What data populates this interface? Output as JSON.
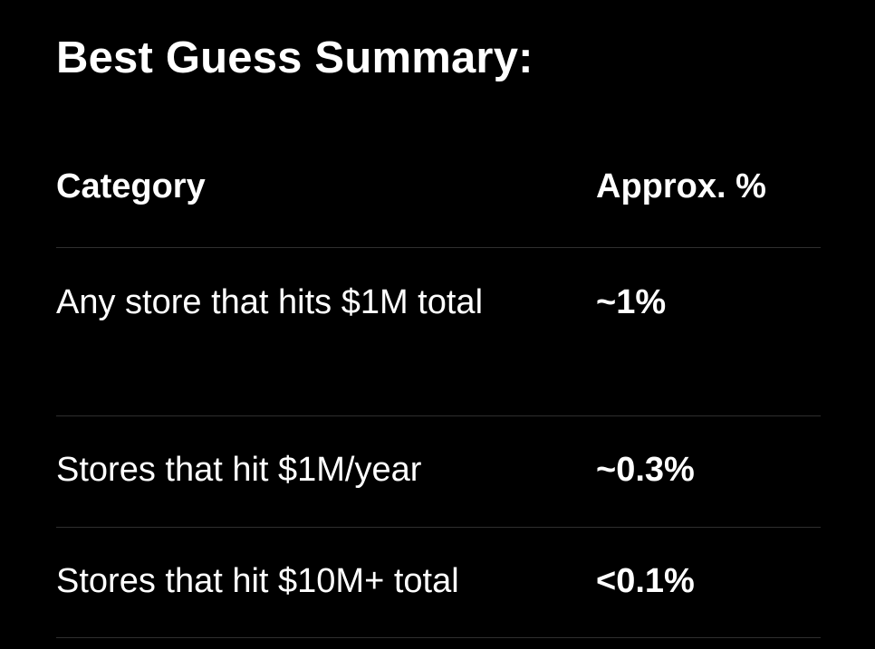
{
  "summary": {
    "title": "Best Guess Summary:",
    "table": {
      "headers": {
        "category": "Category",
        "percent": "Approx. %"
      },
      "rows": [
        {
          "category": "Any store that hits $1M total",
          "percent": "~1%"
        },
        {
          "category": "Stores that hit $1M/year",
          "percent": "~0.3%"
        },
        {
          "category": "Stores that hit $10M+ total",
          "percent": "<0.1%"
        }
      ]
    }
  }
}
